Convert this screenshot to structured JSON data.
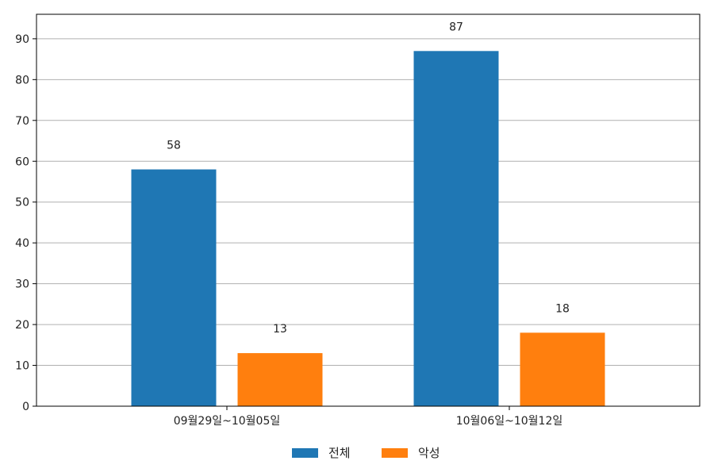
{
  "chart_data": {
    "type": "bar",
    "categories": [
      "09월29일~10월05일",
      "10월06일~10월12일"
    ],
    "series": [
      {
        "name": "전체",
        "values": [
          58,
          87
        ],
        "color": "#1f77b4"
      },
      {
        "name": "악성",
        "values": [
          13,
          18
        ],
        "color": "#ff7f0e"
      }
    ],
    "ylim": [
      0,
      96
    ],
    "yticks": [
      0,
      10,
      20,
      30,
      40,
      50,
      60,
      70,
      80,
      90
    ],
    "grid": true,
    "legend_position": "bottom-center",
    "data_labels": true
  }
}
